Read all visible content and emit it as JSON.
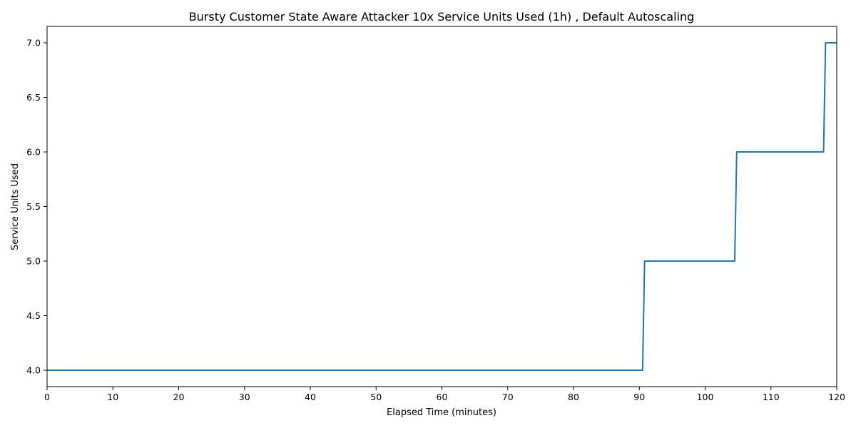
{
  "chart_data": {
    "type": "line",
    "title": "Bursty Customer State Aware Attacker 10x Service Units Used (1h) , Default Autoscaling",
    "xlabel": "Elapsed Time (minutes)",
    "ylabel": "Service Units Used",
    "xlim": [
      0,
      120
    ],
    "ylim": [
      3.85,
      7.15
    ],
    "xticks": [
      0,
      10,
      20,
      30,
      40,
      50,
      60,
      70,
      80,
      90,
      100,
      110,
      120
    ],
    "yticks": [
      4.0,
      4.5,
      5.0,
      5.5,
      6.0,
      6.5,
      7.0
    ],
    "xtick_labels": [
      "0",
      "10",
      "20",
      "30",
      "40",
      "50",
      "60",
      "70",
      "80",
      "90",
      "100",
      "110",
      "120"
    ],
    "ytick_labels": [
      "4.0",
      "4.5",
      "5.0",
      "5.5",
      "6.0",
      "6.5",
      "7.0"
    ],
    "grid": false,
    "series": [
      {
        "color": "#1f77b4",
        "points": [
          [
            0,
            4.0
          ],
          [
            90.5,
            4.0
          ],
          [
            90.8,
            5.0
          ],
          [
            104.5,
            5.0
          ],
          [
            104.8,
            6.0
          ],
          [
            118.0,
            6.0
          ],
          [
            118.3,
            7.0
          ],
          [
            120,
            7.0
          ]
        ]
      }
    ]
  }
}
